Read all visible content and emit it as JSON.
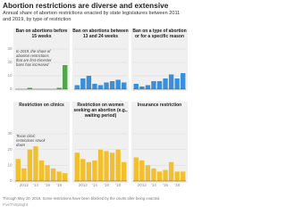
{
  "title": "Abortion restrictions are diverse and extensive",
  "subtitle": "Annual share of abortion restrictions enacted by state legislatures between 2011 and 2019, by type of restriction",
  "footer": "Through May 20, 2019. Some restrictions have been blocked by the courts after being enacted.",
  "source": "FiveThirtyEight",
  "chart_data": [
    {
      "type": "bar",
      "title": "Ban on abortions before 15 weeks",
      "values": [
        0,
        0,
        1,
        0,
        0,
        0,
        0,
        1,
        18
      ],
      "color": "#4fa84a",
      "ylim": [
        0,
        30
      ],
      "yticks": [
        0,
        10,
        20,
        30
      ],
      "grid": true,
      "annotation": "In 2019, the share of abortion restrictions that are first-trimester bans has increased"
    },
    {
      "type": "bar",
      "title": "Ban on abortions between 13 and 24 weeks",
      "values": [
        3,
        8,
        10,
        4,
        3,
        5,
        6,
        7,
        5
      ],
      "color": "#3a8fd9",
      "ylim": [
        0,
        30
      ],
      "yticks": [
        0,
        10,
        20,
        30
      ],
      "grid": true
    },
    {
      "type": "bar",
      "title": "Ban on a type of abortion or for a specific reason",
      "values": [
        4,
        2,
        3,
        6,
        6,
        8,
        11,
        8,
        12
      ],
      "color": "#3a8fd9",
      "ylim": [
        0,
        30
      ],
      "yticks": [
        0,
        10,
        20,
        30
      ],
      "grid": true
    },
    {
      "type": "bar",
      "title": "Restriction on clinics",
      "categories": [
        null,
        "2012",
        null,
        "'14",
        null,
        "'16",
        null,
        "'18",
        null
      ],
      "values": [
        14,
        8,
        20,
        22,
        13,
        10,
        8,
        6,
        5
      ],
      "color": "#f2c02e",
      "ylim": [
        0,
        30
      ],
      "yticks": [
        0,
        10,
        20,
        30
      ],
      "grid": true,
      "annotation": "Texas clinic restrictions struck down"
    },
    {
      "type": "bar",
      "title": "Restriction on women seeking an abortion (e.g., waiting period)",
      "categories": [
        null,
        "2012",
        null,
        "'14",
        null,
        "'16",
        null,
        "'18",
        null
      ],
      "values": [
        18,
        14,
        12,
        13,
        20,
        19,
        18,
        20,
        12
      ],
      "color": "#f2c02e",
      "ylim": [
        0,
        30
      ],
      "yticks": [
        0,
        10,
        20,
        30
      ],
      "grid": true
    },
    {
      "type": "bar",
      "title": "Insurance restriction",
      "categories": [
        null,
        "2012",
        null,
        "'14",
        null,
        "'16",
        null,
        "'18",
        null
      ],
      "values": [
        15,
        13,
        10,
        8,
        6,
        7,
        12,
        6,
        6
      ],
      "color": "#f2c02e",
      "ylim": [
        0,
        30
      ],
      "yticks": [
        0,
        10,
        20,
        30
      ],
      "grid": true
    }
  ]
}
